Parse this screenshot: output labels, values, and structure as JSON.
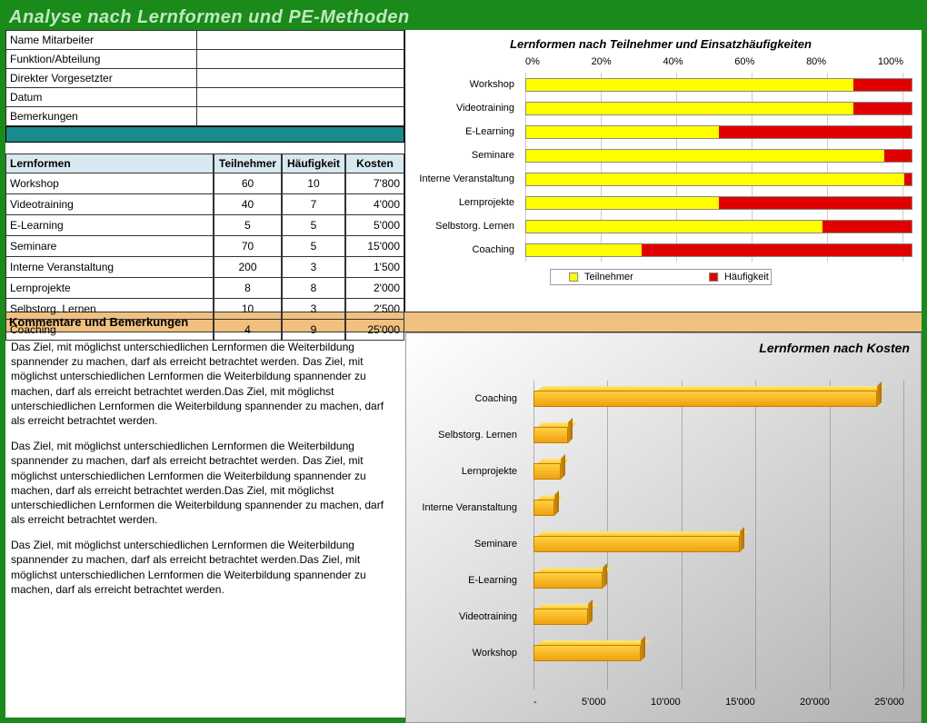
{
  "page_title": "Analyse nach Lernformen und PE-Methoden",
  "info_fields": {
    "name": {
      "label": "Name Mitarbeiter",
      "value": ""
    },
    "funktion": {
      "label": "Funktion/Abteilung",
      "value": ""
    },
    "vorgesetzter": {
      "label": "Direkter Vorgesetzter",
      "value": ""
    },
    "datum": {
      "label": "Datum",
      "value": ""
    },
    "bemerkungen": {
      "label": "Bemerkungen",
      "value": ""
    }
  },
  "lernformen_table": {
    "headers": {
      "name": "Lernformen",
      "teilnehmer": "Teilnehmer",
      "haeufigkeit": "Häufigkeit",
      "kosten": "Kosten"
    },
    "rows": [
      {
        "name": "Workshop",
        "teilnehmer": 60,
        "haeufigkeit": 10,
        "kosten": "7'800"
      },
      {
        "name": "Videotraining",
        "teilnehmer": 40,
        "haeufigkeit": 7,
        "kosten": "4'000"
      },
      {
        "name": "E-Learning",
        "teilnehmer": 5,
        "haeufigkeit": 5,
        "kosten": "5'000"
      },
      {
        "name": "Seminare",
        "teilnehmer": 70,
        "haeufigkeit": 5,
        "kosten": "15'000"
      },
      {
        "name": "Interne Veranstaltung",
        "teilnehmer": 200,
        "haeufigkeit": 3,
        "kosten": "1'500"
      },
      {
        "name": "Lernprojekte",
        "teilnehmer": 8,
        "haeufigkeit": 8,
        "kosten": "2'000"
      },
      {
        "name": "Selbstorg. Lernen",
        "teilnehmer": 10,
        "haeufigkeit": 3,
        "kosten": "2'500"
      },
      {
        "name": "Coaching",
        "teilnehmer": 4,
        "haeufigkeit": 9,
        "kosten": "25'000"
      }
    ]
  },
  "chart1": {
    "type": "stacked-bar-horizontal-100pct",
    "title": "Lernformen nach Teilnehmer und Einsatzhäufigkeiten",
    "xticks": [
      "0%",
      "20%",
      "40%",
      "60%",
      "80%",
      "100%"
    ],
    "series_colors": {
      "teilnehmer": "#ffff00",
      "haeufigkeit": "#e00000"
    },
    "legend": {
      "a": "Teilnehmer",
      "b": "Häufigkeit"
    },
    "bars": [
      {
        "label": "Workshop",
        "pct_a": 85,
        "pct_b": 15
      },
      {
        "label": "Videotraining",
        "pct_a": 85,
        "pct_b": 15
      },
      {
        "label": "E-Learning",
        "pct_a": 50,
        "pct_b": 50
      },
      {
        "label": "Seminare",
        "pct_a": 93,
        "pct_b": 7
      },
      {
        "label": "Interne Veranstaltung",
        "pct_a": 98,
        "pct_b": 2
      },
      {
        "label": "Lernprojekte",
        "pct_a": 50,
        "pct_b": 50
      },
      {
        "label": "Selbstorg. Lernen",
        "pct_a": 77,
        "pct_b": 23
      },
      {
        "label": "Coaching",
        "pct_a": 30,
        "pct_b": 70
      }
    ],
    "background_color": "#ffffff",
    "grid_color": "#cccccc",
    "label_fontsize": 11,
    "title_fontsize": 13
  },
  "commentary_header": "Kommentare und Bemerkungen",
  "comments": [
    "Das Ziel, mit möglichst unterschiedlichen Lernformen die Weiterbildung spannender zu machen, darf als erreicht betrachtet werden. Das Ziel, mit möglichst unterschiedlichen Lernformen die Weiterbildung spannender zu machen, darf als erreicht betrachtet werden.Das Ziel, mit möglichst unterschiedlichen Lernformen die Weiterbildung spannender zu machen, darf als erreicht betrachtet werden.",
    "Das Ziel, mit möglichst unterschiedlichen Lernformen die Weiterbildung spannender zu machen, darf als erreicht betrachtet werden. Das Ziel, mit möglichst unterschiedlichen Lernformen die Weiterbildung spannender zu machen, darf als erreicht betrachtet werden.Das Ziel, mit möglichst unterschiedlichen Lernformen die Weiterbildung spannender zu machen, darf als erreicht betrachtet werden.",
    "Das Ziel, mit möglichst unterschiedlichen Lernformen die Weiterbildung spannender zu machen, darf als erreicht betrachtet werden.Das Ziel, mit möglichst unterschiedlichen Lernformen die Weiterbildung spannender zu machen, darf als erreicht betrachtet werden."
  ],
  "chart2": {
    "type": "bar-horizontal-3d",
    "title": "Lernformen nach Kosten",
    "xmax": 27000,
    "xticks": [
      "-",
      "5'000",
      "10'000",
      "15'000",
      "20'000",
      "25'000"
    ],
    "bar_color_gradient": [
      "#ffd040",
      "#f0a010"
    ],
    "bar_border": "#c08000",
    "background_gradient": [
      "#ffffff",
      "#b0b0b0"
    ],
    "label_fontsize": 11,
    "title_fontsize": 14,
    "bars": [
      {
        "label": "Coaching",
        "value": 25000
      },
      {
        "label": "Selbstorg. Lernen",
        "value": 2500
      },
      {
        "label": "Lernprojekte",
        "value": 2000
      },
      {
        "label": "Interne Veranstaltung",
        "value": 1500
      },
      {
        "label": "Seminare",
        "value": 15000
      },
      {
        "label": "E-Learning",
        "value": 5000
      },
      {
        "label": "Videotraining",
        "value": 4000
      },
      {
        "label": "Workshop",
        "value": 7800
      }
    ]
  }
}
